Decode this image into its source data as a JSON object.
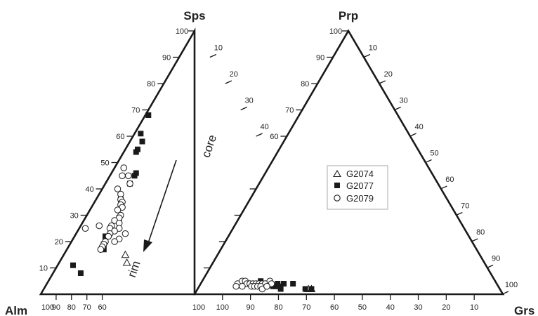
{
  "chart_data": {
    "type": "scatter",
    "subtype": "ternary-pair",
    "corner_labels": {
      "left": "Alm",
      "right": "Grs",
      "top_left": "Sps",
      "top_right": "Prp"
    },
    "ticks": {
      "left_triangle_left_edge": [
        "10",
        "20",
        "30",
        "40",
        "50",
        "60",
        "70",
        "80",
        "90",
        "100"
      ],
      "left_triangle_right_edge": [
        "10",
        "20",
        "30",
        "40"
      ],
      "right_triangle_left_edge": [
        "60",
        "70",
        "80",
        "90",
        "100"
      ],
      "right_triangle_right_edge": [
        "10",
        "20",
        "30",
        "40",
        "50",
        "60",
        "70",
        "80",
        "90",
        "100"
      ],
      "bottom_left": [
        "100",
        "90",
        "80",
        "70",
        "60"
      ],
      "bottom_right": [
        "100",
        "90",
        "80",
        "70",
        "60",
        "50",
        "40",
        "30",
        "20",
        "10"
      ]
    },
    "annotations": {
      "core": "core",
      "rim": "rim"
    },
    "legend": {
      "placement": "center-right",
      "entries": [
        {
          "name": "G2074",
          "marker": "open-triangle"
        },
        {
          "name": "G2077",
          "marker": "filled-square"
        },
        {
          "name": "G2079",
          "marker": "open-circle"
        }
      ]
    },
    "series": [
      {
        "name": "G2074",
        "diagram_sps_alm": [
          {
            "sps": 15,
            "alm": 65
          },
          {
            "sps": 12,
            "alm": 66
          }
        ],
        "diagram_prp_grs": [
          {
            "prp": 2,
            "grs": 36
          },
          {
            "prp": 2,
            "grs": 37
          }
        ]
      },
      {
        "name": "G2077",
        "diagram_sps_alm": [
          {
            "sps": 68,
            "alm": 31
          },
          {
            "sps": 61,
            "alm": 37
          },
          {
            "sps": 58,
            "alm": 38
          },
          {
            "sps": 55,
            "alm": 41
          },
          {
            "sps": 54,
            "alm": 42
          },
          {
            "sps": 46,
            "alm": 46
          },
          {
            "sps": 45,
            "alm": 47
          },
          {
            "sps": 42,
            "alm": 50
          },
          {
            "sps": 36,
            "alm": 56
          },
          {
            "sps": 29,
            "alm": 60
          },
          {
            "sps": 28,
            "alm": 61
          },
          {
            "sps": 22,
            "alm": 68
          },
          {
            "sps": 20,
            "alm": 69
          },
          {
            "sps": 19,
            "alm": 70
          },
          {
            "sps": 17,
            "alm": 71
          },
          {
            "sps": 11,
            "alm": 84
          },
          {
            "sps": 8,
            "alm": 83
          }
        ],
        "diagram_prp_grs": [
          {
            "prp": 5,
            "grs": 19
          },
          {
            "prp": 4,
            "grs": 22
          },
          {
            "prp": 3,
            "grs": 24
          },
          {
            "prp": 4,
            "grs": 25
          },
          {
            "prp": 3,
            "grs": 25
          },
          {
            "prp": 4,
            "grs": 27
          },
          {
            "prp": 3,
            "grs": 26
          },
          {
            "prp": 2,
            "grs": 27
          },
          {
            "prp": 4,
            "grs": 30
          },
          {
            "prp": 2,
            "grs": 35
          },
          {
            "prp": 2,
            "grs": 37
          }
        ]
      },
      {
        "name": "G2079",
        "diagram_sps_alm": [
          {
            "sps": 48,
            "alm": 49
          },
          {
            "sps": 45,
            "alm": 51
          },
          {
            "sps": 45,
            "alm": 49
          },
          {
            "sps": 42,
            "alm": 50
          },
          {
            "sps": 40,
            "alm": 55
          },
          {
            "sps": 38,
            "alm": 55
          },
          {
            "sps": 36,
            "alm": 56
          },
          {
            "sps": 35,
            "alm": 56
          },
          {
            "sps": 34,
            "alm": 57
          },
          {
            "sps": 33,
            "alm": 57
          },
          {
            "sps": 32,
            "alm": 59
          },
          {
            "sps": 30,
            "alm": 59
          },
          {
            "sps": 29,
            "alm": 60
          },
          {
            "sps": 28,
            "alm": 62
          },
          {
            "sps": 27,
            "alm": 61
          },
          {
            "sps": 26,
            "alm": 64
          },
          {
            "sps": 26,
            "alm": 68
          },
          {
            "sps": 25,
            "alm": 62
          },
          {
            "sps": 25,
            "alm": 65
          },
          {
            "sps": 25,
            "alm": 73
          },
          {
            "sps": 24,
            "alm": 64
          },
          {
            "sps": 23,
            "alm": 66
          },
          {
            "sps": 23,
            "alm": 61
          },
          {
            "sps": 22,
            "alm": 67
          },
          {
            "sps": 21,
            "alm": 64
          },
          {
            "sps": 20,
            "alm": 66
          },
          {
            "sps": 20,
            "alm": 69
          },
          {
            "sps": 19,
            "alm": 70
          },
          {
            "sps": 18,
            "alm": 71
          },
          {
            "sps": 17,
            "alm": 72
          }
        ],
        "diagram_prp_grs": [
          {
            "prp": 4,
            "grs": 12
          },
          {
            "prp": 5,
            "grs": 13
          },
          {
            "prp": 5,
            "grs": 14
          },
          {
            "prp": 4,
            "grs": 15
          },
          {
            "prp": 4,
            "grs": 16
          },
          {
            "prp": 3,
            "grs": 12
          },
          {
            "prp": 3,
            "grs": 14
          },
          {
            "prp": 4,
            "grs": 17
          },
          {
            "prp": 3,
            "grs": 17
          },
          {
            "prp": 4,
            "grs": 18
          },
          {
            "prp": 3,
            "grs": 18
          },
          {
            "prp": 4,
            "grs": 19
          },
          {
            "prp": 3,
            "grs": 19
          },
          {
            "prp": 4,
            "grs": 20
          },
          {
            "prp": 4,
            "grs": 21
          },
          {
            "prp": 5,
            "grs": 22
          },
          {
            "prp": 4,
            "grs": 23
          },
          {
            "prp": 3,
            "grs": 20
          },
          {
            "prp": 2,
            "grs": 21
          },
          {
            "prp": 3,
            "grs": 22
          }
        ]
      }
    ]
  }
}
